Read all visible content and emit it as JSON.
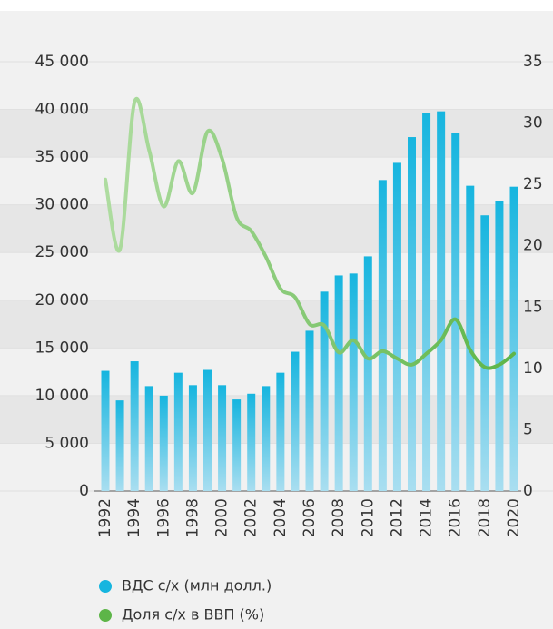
{
  "chart_data": {
    "type": "bar_line",
    "categories": [
      "1992",
      null,
      "1994",
      null,
      "1996",
      null,
      "1998",
      null,
      "2000",
      null,
      "2002",
      null,
      "2004",
      null,
      "2006",
      null,
      "2008",
      null,
      "2010",
      null,
      "2012",
      null,
      "2014",
      null,
      "2016",
      null,
      "2018",
      null,
      "2020"
    ],
    "series": [
      {
        "name": "ВДС с/х (млн долл.)",
        "color": "#16b5df",
        "type": "bar",
        "values": [
          12600,
          9500,
          13600,
          11000,
          10000,
          12400,
          11100,
          12700,
          11100,
          9600,
          10200,
          11000,
          12400,
          14600,
          16800,
          20900,
          22600,
          22800,
          24600,
          32600,
          34400,
          37100,
          39600,
          39800,
          37500,
          32000,
          28900,
          30400,
          31900
        ]
      },
      {
        "name": "Доля с/х в ВВП (%)",
        "color": "#5db548",
        "type": "line",
        "axis": "y2",
        "values": [
          25.4,
          19.7,
          31.7,
          27.8,
          23.2,
          26.9,
          24.3,
          29.3,
          27.1,
          22.3,
          21.2,
          19.1,
          16.5,
          15.8,
          13.6,
          13.5,
          11.3,
          12.3,
          10.8,
          11.4,
          10.8,
          10.3,
          11.2,
          12.3,
          14.0,
          11.5,
          10.1,
          10.3,
          11.2
        ]
      }
    ],
    "ylim": [
      0,
      45000
    ],
    "yticks": [
      0,
      {
        "value": 5000,
        "label": "5 000"
      },
      {
        "value": 10000,
        "label": "10 000"
      },
      {
        "value": 15000,
        "label": "15 000"
      },
      {
        "value": 20000,
        "label": "20 000"
      },
      {
        "value": 25000,
        "label": "25 000"
      },
      {
        "value": 30000,
        "label": "30 000"
      },
      {
        "value": 35000,
        "label": "35 000"
      },
      {
        "value": 40000,
        "label": "40 000"
      },
      {
        "value": 45000,
        "label": "45 000"
      }
    ],
    "y2lim": [
      0,
      35
    ],
    "y2ticks": [
      0,
      5,
      10,
      15,
      20,
      25,
      30,
      35
    ],
    "grid": true
  }
}
